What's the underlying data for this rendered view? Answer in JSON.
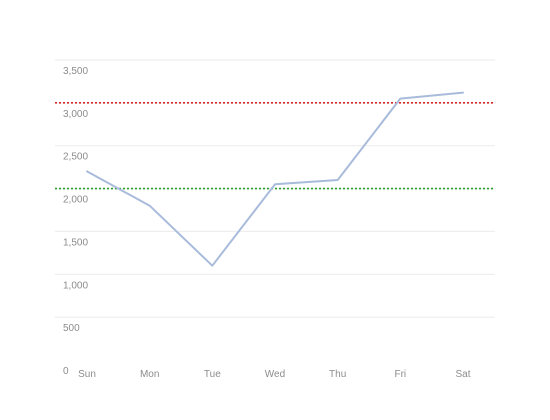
{
  "chart_data": {
    "type": "line",
    "title": "",
    "xlabel": "",
    "ylabel": "",
    "categories": [
      "Sun",
      "Mon",
      "Tue",
      "Wed",
      "Thu",
      "Fri",
      "Sat"
    ],
    "series": [
      {
        "values": [
          2200,
          1800,
          1100,
          2050,
          2100,
          3050,
          3120
        ],
        "color": "#a9bbdb"
      }
    ],
    "reference_lines": [
      {
        "value": 3000,
        "color": "#d62728",
        "style": "dotted"
      },
      {
        "value": 2000,
        "color": "#2ca02c",
        "style": "dotted"
      }
    ],
    "ylim": [
      0,
      3500
    ],
    "y_ticks": [
      0,
      500,
      1000,
      1500,
      2000,
      2500,
      3000,
      3500
    ],
    "y_tick_labels": [
      "0",
      "500",
      "1,000",
      "1,500",
      "2,000",
      "2,500",
      "3,000",
      "3,500"
    ],
    "grid": true,
    "grid_color": "#ebebeb",
    "legend": "none"
  }
}
